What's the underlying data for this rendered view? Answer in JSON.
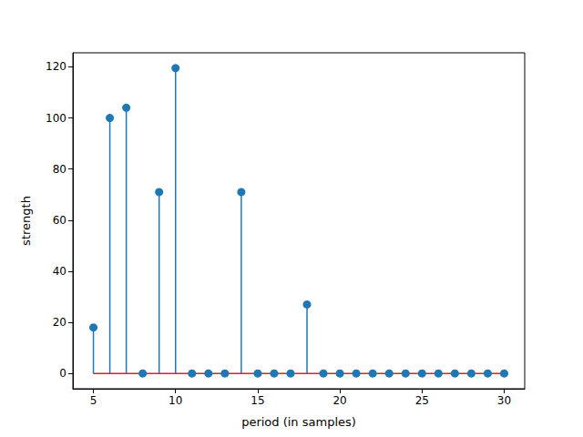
{
  "chart_data": {
    "type": "stem",
    "x": [
      5,
      6,
      7,
      8,
      9,
      10,
      11,
      12,
      13,
      14,
      15,
      16,
      17,
      18,
      19,
      20,
      21,
      22,
      23,
      24,
      25,
      26,
      27,
      28,
      29,
      30
    ],
    "values": [
      18,
      100,
      104,
      0,
      71,
      119.5,
      0,
      0,
      0,
      71,
      0,
      0,
      0,
      27,
      0,
      0,
      0,
      0,
      0,
      0,
      0,
      0,
      0,
      0,
      0,
      0
    ],
    "color": "#1f77b4",
    "marker": "circle",
    "xlabel": "period (in samples)",
    "ylabel": "strength",
    "xlim": [
      3.75,
      31.25
    ],
    "xticks": [
      5,
      10,
      15,
      20,
      25,
      30
    ],
    "ylim": [
      -6,
      125.5
    ],
    "yticks": [
      0,
      20,
      40,
      60,
      80,
      100,
      120
    ],
    "grid": false
  }
}
